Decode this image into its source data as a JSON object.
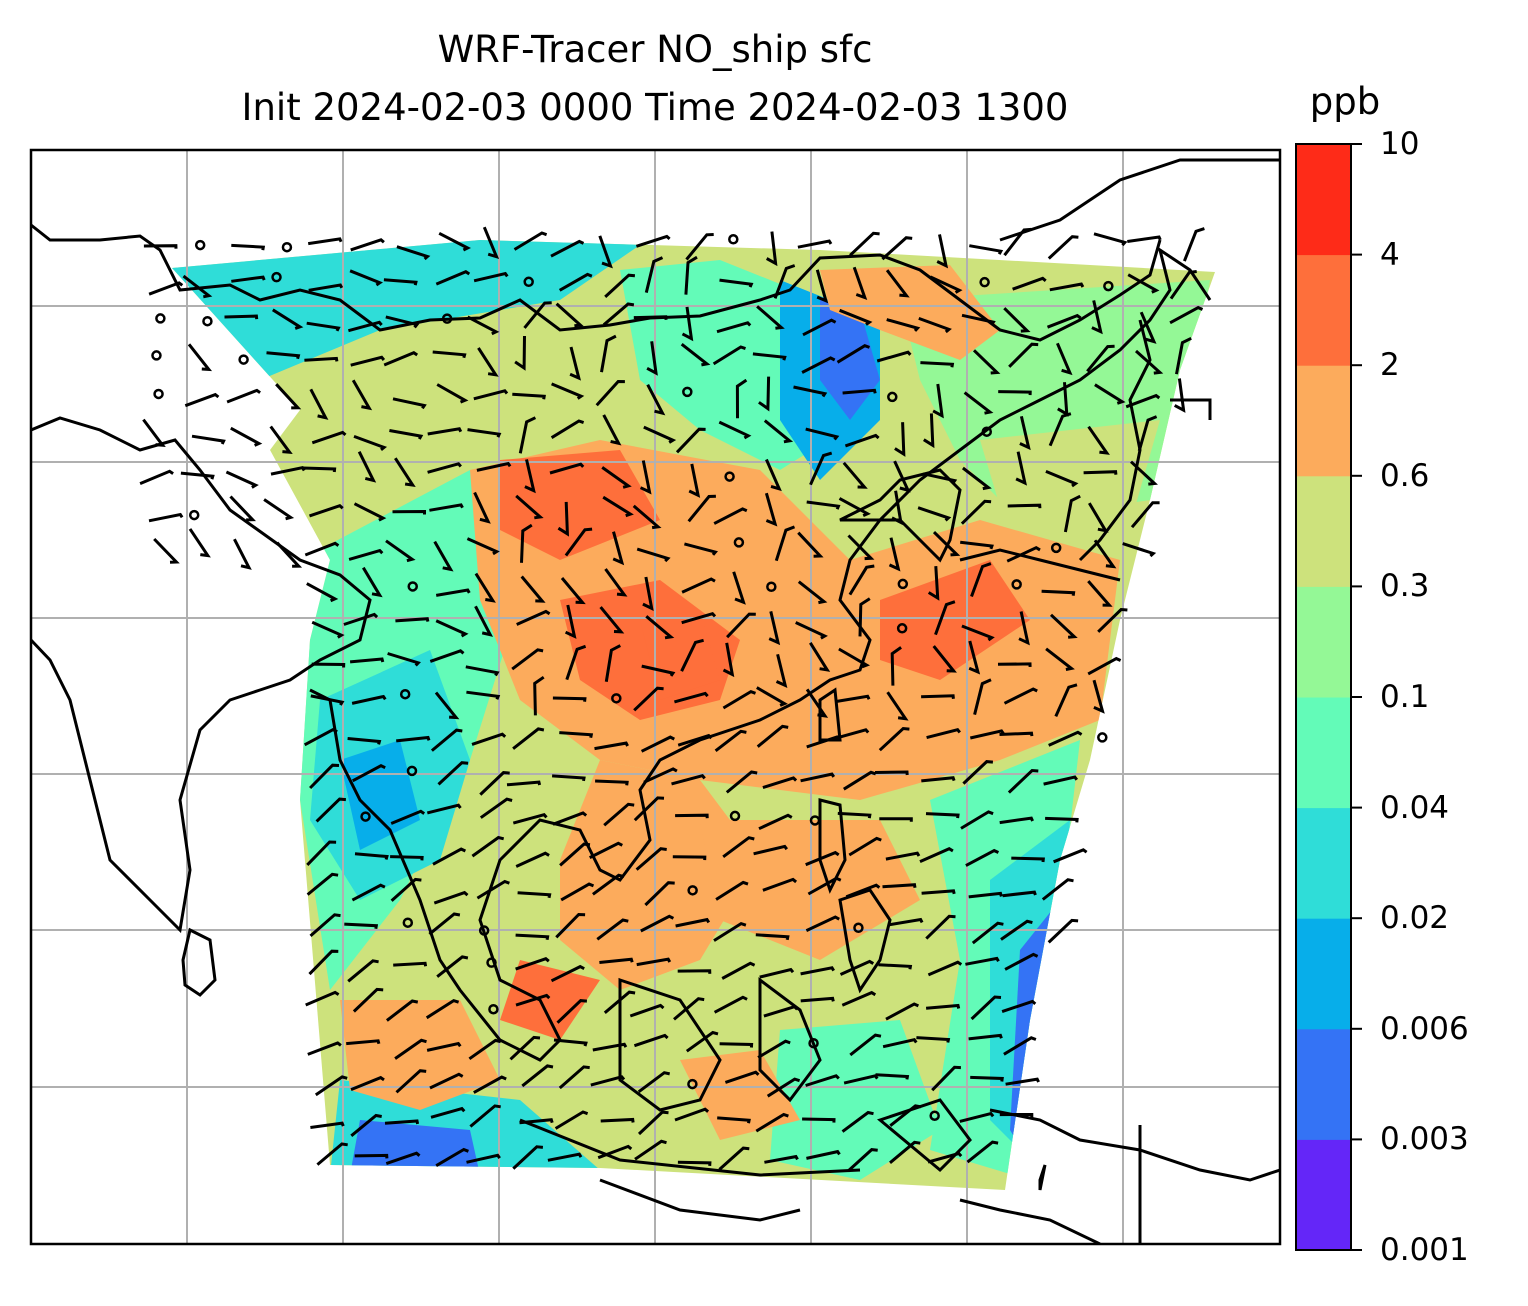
{
  "title": {
    "line1": "WRF-Tracer NO_ship sfc",
    "line2": "Init 2024-02-03 0000 Time 2024-02-03 1300"
  },
  "colorbar": {
    "unit": "ppb",
    "ticks": [
      "0.001",
      "0.003",
      "0.006",
      "0.02",
      "0.04",
      "0.1",
      "0.3",
      "0.6",
      "2",
      "4",
      "10"
    ],
    "colors": [
      "#6426f8",
      "#3473f5",
      "#07aeea",
      "#2fddd8",
      "#63fbb8",
      "#94f896",
      "#cde27c",
      "#fcab5c",
      "#fe6f3b",
      "#fe2b18"
    ]
  },
  "chart_data": {
    "type": "heatmap",
    "title": "WRF-Tracer NO_ship sfc",
    "subtitle": "Init 2024-02-03 0000 Time 2024-02-03 1300",
    "variable": "NO_ship surface concentration",
    "unit": "ppb",
    "levels": [
      0.001,
      0.003,
      0.006,
      0.02,
      0.04,
      0.1,
      0.3,
      0.6,
      2,
      4,
      10
    ],
    "grid": true,
    "legend": "colorbar right",
    "overlays": [
      "coastlines",
      "wind barbs",
      "calm circles"
    ]
  }
}
